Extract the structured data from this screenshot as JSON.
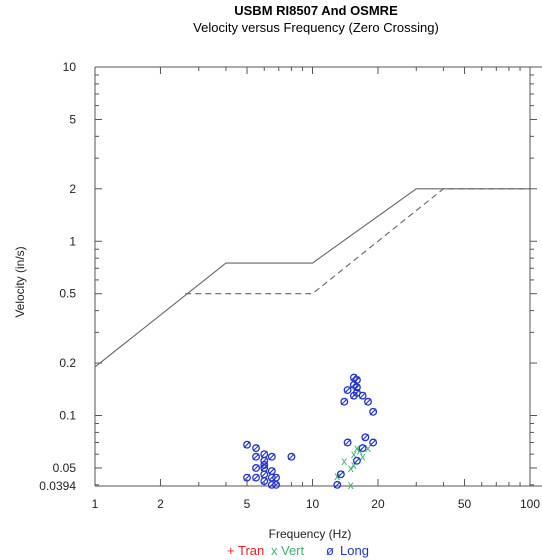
{
  "chart_data": {
    "type": "scatter",
    "title": "USBM RI8507 And OSMRE",
    "subtitle": "Velocity versus Frequency (Zero Crossing)",
    "xlabel": "Frequency (Hz)",
    "ylabel": "Velocity (in/s)",
    "x_scale": "log",
    "y_scale": "log",
    "xlim": [
      1,
      100
    ],
    "ylim": [
      0.0394,
      10
    ],
    "x_ticks": [
      "1",
      "2",
      "5",
      "10",
      "20",
      "50",
      "100"
    ],
    "y_ticks": [
      "10",
      "5",
      "2",
      "1",
      "0.5",
      "0.2",
      "0.1",
      "0.05",
      "0.0394"
    ],
    "limit_lines": [
      {
        "style": "solid",
        "x": [
          1,
          4,
          10,
          30,
          100
        ],
        "y": [
          0.19,
          0.75,
          0.75,
          2,
          2
        ]
      },
      {
        "style": "dashed",
        "x": [
          2.6,
          10,
          40,
          100
        ],
        "y": [
          0.5,
          0.5,
          2,
          2
        ]
      }
    ],
    "series": [
      {
        "name": "Tran",
        "marker": "+",
        "color": "#e8202a",
        "points": []
      },
      {
        "name": "Vert",
        "marker": "x",
        "color": "#3cb371",
        "points": [
          [
            13,
            0.045
          ],
          [
            14,
            0.055
          ],
          [
            15,
            0.05
          ],
          [
            15,
            0.04
          ],
          [
            15.5,
            0.06
          ],
          [
            15.5,
            0.052
          ],
          [
            16,
            0.065
          ],
          [
            16.5,
            0.063
          ],
          [
            18,
            0.065
          ],
          [
            17,
            0.058
          ]
        ]
      },
      {
        "name": "Long",
        "marker": "ø",
        "color": "#2233cc",
        "points": [
          [
            5,
            0.068
          ],
          [
            5.5,
            0.065
          ],
          [
            5.5,
            0.058
          ],
          [
            5,
            0.044
          ],
          [
            5.5,
            0.05
          ],
          [
            5.5,
            0.044
          ],
          [
            6,
            0.06
          ],
          [
            6,
            0.055
          ],
          [
            6,
            0.052
          ],
          [
            6,
            0.05
          ],
          [
            6,
            0.046
          ],
          [
            6,
            0.042
          ],
          [
            6.5,
            0.048
          ],
          [
            6.5,
            0.044
          ],
          [
            6.5,
            0.058
          ],
          [
            6.5,
            0.04
          ],
          [
            6.8,
            0.044
          ],
          [
            6.8,
            0.04
          ],
          [
            8,
            0.058
          ],
          [
            13,
            0.04
          ],
          [
            13.5,
            0.046
          ],
          [
            14,
            0.12
          ],
          [
            14.5,
            0.14
          ],
          [
            14.5,
            0.07
          ],
          [
            15.5,
            0.15
          ],
          [
            15.5,
            0.165
          ],
          [
            15.5,
            0.13
          ],
          [
            16,
            0.135
          ],
          [
            16,
            0.16
          ],
          [
            16,
            0.145
          ],
          [
            17,
            0.13
          ],
          [
            17.5,
            0.075
          ],
          [
            18,
            0.12
          ],
          [
            19,
            0.105
          ],
          [
            19,
            0.07
          ],
          [
            16,
            0.055
          ],
          [
            17,
            0.065
          ]
        ]
      }
    ],
    "legend": {
      "placement": "bottom-center"
    }
  }
}
